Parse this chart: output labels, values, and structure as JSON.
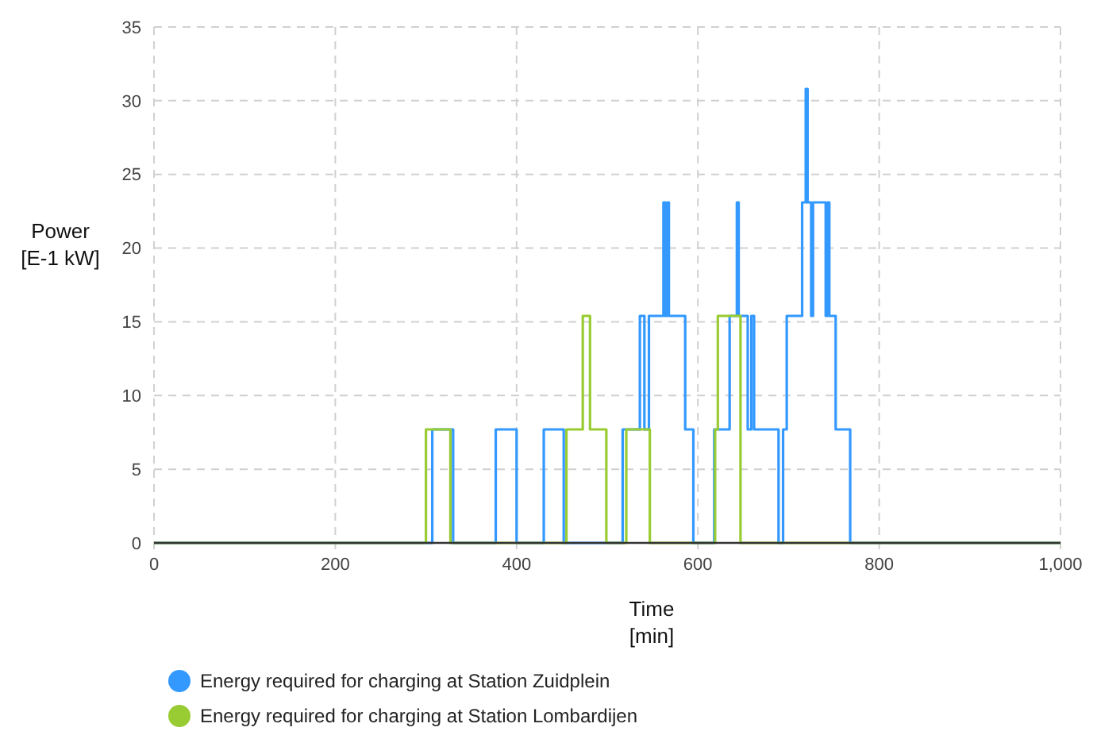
{
  "chart_data": {
    "type": "step",
    "xlabel": "Time\n[min]",
    "ylabel": "Power\n[E-1 kW]",
    "xlim": [
      0,
      1000
    ],
    "xticks": [
      0,
      200,
      400,
      600,
      800,
      {
        "value": 1000,
        "label": "1,000"
      }
    ],
    "ylim": [
      0,
      35
    ],
    "yticks": [
      0,
      5,
      10,
      15,
      20,
      25,
      30,
      35
    ],
    "grid": true,
    "legend": "bottom",
    "marker": "none",
    "series": [
      {
        "name": "Energy required for charging at Station Zuidplein",
        "color": "#3399ff",
        "x": [
          0,
          307,
          330,
          377,
          400,
          430,
          452,
          517,
          536,
          541,
          546,
          562,
          564,
          566,
          568,
          586,
          595,
          618,
          635,
          643,
          645,
          655,
          659,
          662,
          689,
          694,
          698,
          715,
          719,
          721,
          725,
          727,
          741,
          743,
          745,
          752,
          768,
          1000
        ],
        "values": [
          0,
          7.7,
          0,
          7.7,
          0,
          7.7,
          0,
          7.7,
          15.4,
          7.7,
          15.4,
          23.1,
          15.4,
          23.1,
          15.4,
          7.7,
          0,
          7.7,
          15.4,
          23.1,
          15.4,
          7.7,
          15.4,
          7.7,
          0,
          7.7,
          15.4,
          23.1,
          30.8,
          23.1,
          15.4,
          23.1,
          15.4,
          23.1,
          15.4,
          7.7,
          0,
          0
        ]
      },
      {
        "name": "Energy required for charging at Station Lombardijen",
        "color": "#99cc33",
        "x": [
          0,
          300,
          327,
          455,
          473,
          481,
          499,
          521,
          547,
          619,
          622,
          647,
          1000
        ],
        "values": [
          0,
          7.7,
          0,
          7.7,
          15.4,
          7.7,
          0,
          7.7,
          0,
          7.7,
          15.4,
          0,
          0
        ]
      }
    ]
  }
}
